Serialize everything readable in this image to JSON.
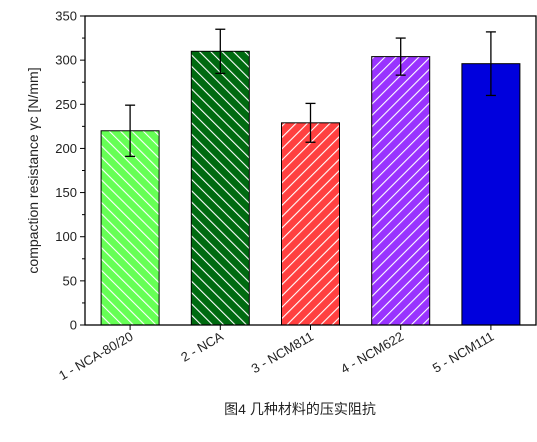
{
  "chart_data": {
    "type": "bar",
    "y_label": "compaction resistance γc [N/mm]",
    "categories": [
      "1 - NCA-80/20",
      "2 - NCA",
      "3 - NCM811",
      "4 - NCM622",
      "5 - NCM111"
    ],
    "values": [
      220,
      310,
      229,
      304,
      296
    ],
    "errors": [
      29,
      25,
      22,
      21,
      36
    ],
    "colors": [
      "#66ff55",
      "#006a10",
      "#ff4040",
      "#9933ff",
      "#0000dd"
    ],
    "patterns": [
      "backslash",
      "backslash",
      "slash",
      "slash",
      "none"
    ],
    "ylim": [
      0,
      350
    ],
    "yticks": [
      0,
      50,
      100,
      150,
      200,
      250,
      300,
      350
    ]
  },
  "caption": "图4 几种材料的压实阻抗"
}
